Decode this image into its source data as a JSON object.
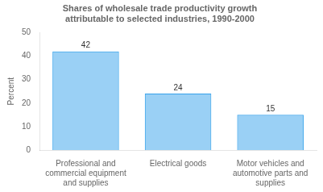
{
  "chart_data": {
    "type": "bar",
    "title": "Shares of wholesale trade productivity growth\nattributable to selected industries, 1990-2000",
    "categories": [
      "Professional and\ncommercial equipment\nand supplies",
      "Electrical goods",
      "Motor vehicles and\nautomotive parts and\nsupplies"
    ],
    "values": [
      42,
      24,
      15
    ],
    "y_label": "Percent",
    "ylim": [
      0,
      50
    ],
    "yticks": [
      0,
      10,
      20,
      30,
      40,
      50
    ],
    "grid": false,
    "legend": false,
    "data_labels": true
  }
}
